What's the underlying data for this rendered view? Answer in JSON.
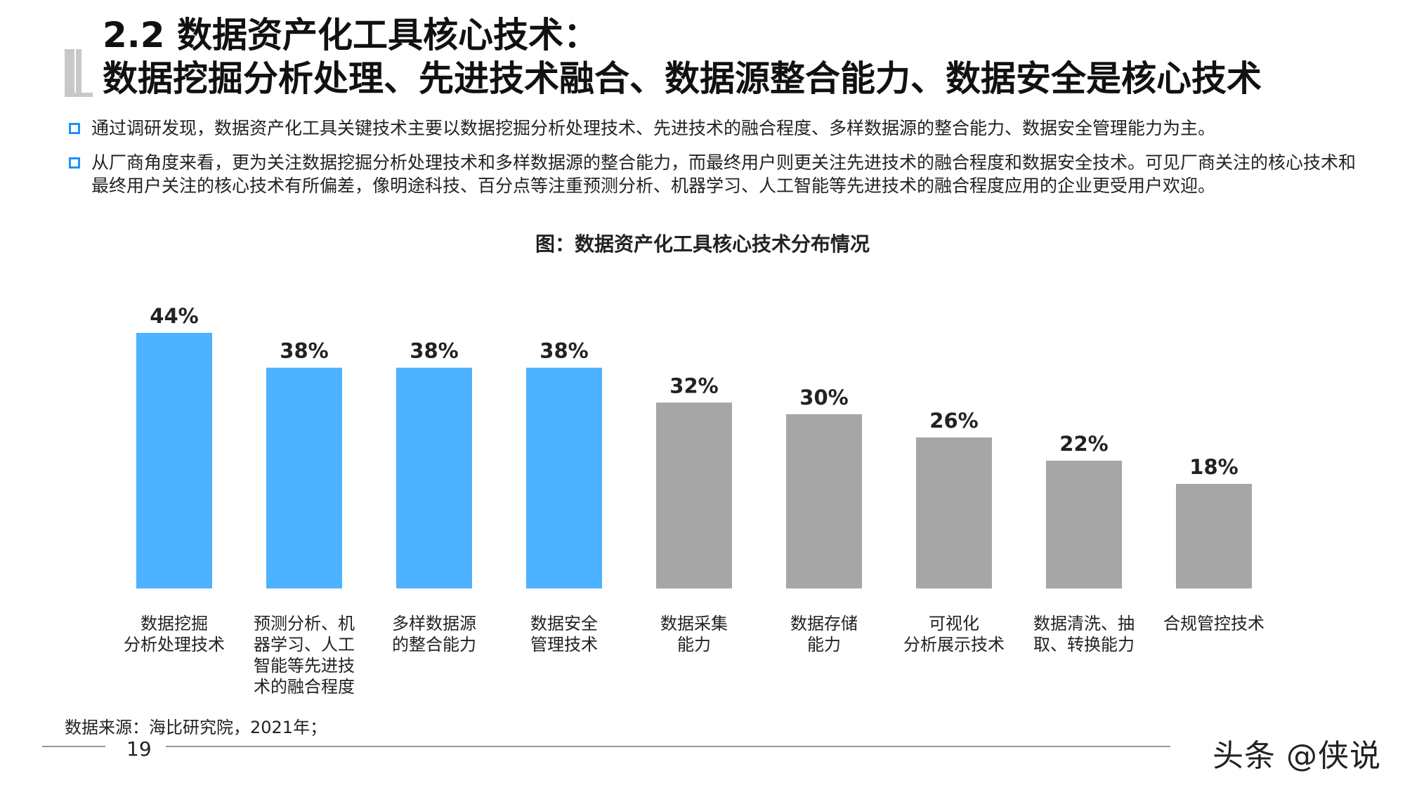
{
  "header": {
    "title_line1": "2.2 数据资产化工具核心技术：",
    "title_line2": "数据挖掘分析处理、先进技术融合、数据源整合能力、数据安全是核心技术"
  },
  "bullets": [
    "通过调研发现，数据资产化工具关键技术主要以数据挖掘分析处理技术、先进技术的融合程度、多样数据源的整合能力、数据安全管理能力为主。",
    "从厂商角度来看，更为关注数据挖掘分析处理技术和多样数据源的整合能力，而最终用户则更关注先进技术的融合程度和数据安全技术。可见厂商关注的核心技术和最终用户关注的核心技术有所偏差，像明途科技、百分点等注重预测分析、机器学习、人工智能等先进技术的融合程度应用的企业更受用户欢迎。"
  ],
  "chart_title": "图：数据资产化工具核心技术分布情况",
  "chart_data": {
    "type": "bar",
    "title": "图：数据资产化工具核心技术分布情况",
    "categories": [
      [
        "数据挖掘",
        "分析处理技术"
      ],
      [
        "预测分析、机",
        "器学习、人工",
        "智能等先进技",
        "术的融合程度"
      ],
      [
        "多样数据源",
        "的整合能力"
      ],
      [
        "数据安全",
        "管理技术"
      ],
      [
        "数据采集",
        "能力"
      ],
      [
        "数据存储",
        "能力"
      ],
      [
        "可视化",
        "分析展示技术"
      ],
      [
        "数据清洗、抽",
        "取、转换能力"
      ],
      [
        "合规管控技术"
      ]
    ],
    "values": [
      44,
      38,
      38,
      38,
      32,
      30,
      26,
      22,
      18
    ],
    "value_labels": [
      "44%",
      "38%",
      "38%",
      "38%",
      "32%",
      "30%",
      "26%",
      "22%",
      "18%"
    ],
    "highlight_count": 4,
    "colors": {
      "highlight": "#4db2ff",
      "normal": "#a6a6a6"
    },
    "xlabel": "",
    "ylabel": "",
    "ylim": [
      0,
      44
    ],
    "grid": false,
    "legend": "none"
  },
  "footer": {
    "source": "数据来源：海比研究院，2021年；",
    "page_number": "19",
    "watermark": "头条 @侠说"
  }
}
